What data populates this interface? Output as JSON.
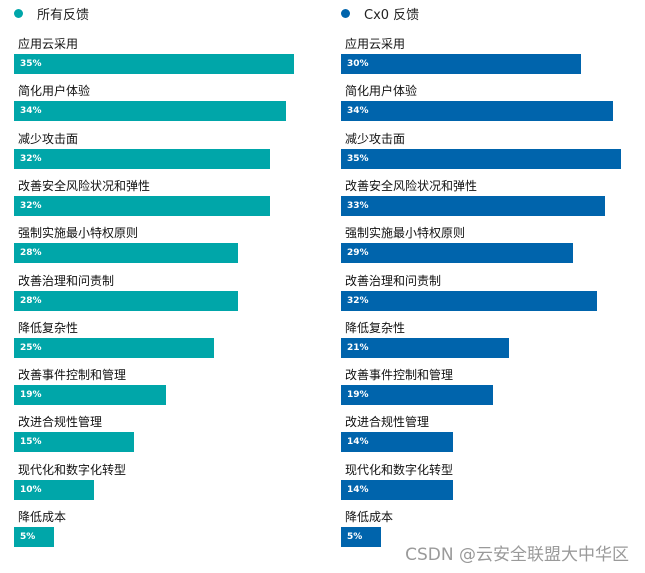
{
  "chart_data": [
    {
      "type": "bar",
      "orientation": "horizontal",
      "legend": "所有反馈",
      "color": "#00A6A9",
      "categories": [
        "应用云采用",
        "简化用户体验",
        "减少攻击面",
        "改善安全风险状况和弹性",
        "强制实施最小特权原则",
        "改善治理和问责制",
        "降低复杂性",
        "改善事件控制和管理",
        "改进合规性管理",
        "现代化和数字化转型",
        "降低成本"
      ],
      "values": [
        35,
        34,
        32,
        32,
        28,
        28,
        25,
        19,
        15,
        10,
        5
      ],
      "unit": "%"
    },
    {
      "type": "bar",
      "orientation": "horizontal",
      "legend": "Cx0 反馈",
      "color": "#0064AC",
      "categories": [
        "应用云采用",
        "简化用户体验",
        "减少攻击面",
        "改善安全风险状况和弹性",
        "强制实施最小特权原则",
        "改善治理和问责制",
        "降低复杂性",
        "改善事件控制和管理",
        "改进合规性管理",
        "现代化和数字化转型",
        "降低成本"
      ],
      "values": [
        30,
        34,
        35,
        33,
        29,
        32,
        21,
        19,
        14,
        14,
        5
      ],
      "unit": "%"
    }
  ],
  "watermark": "CSDN @云安全联盟大中华区"
}
